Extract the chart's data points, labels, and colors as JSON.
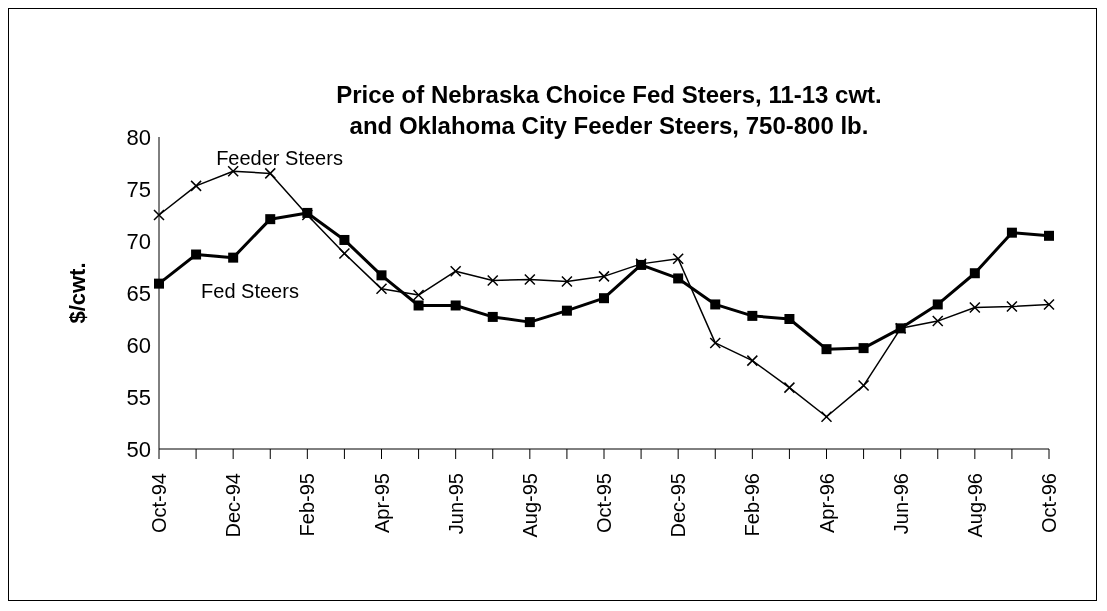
{
  "chart_data": {
    "type": "line",
    "title": "Price of Nebraska Choice Fed Steers, 11-13 cwt.\nand Oklahoma City Feeder Steers, 750-800 lb.",
    "ylabel": "$/cwt.",
    "categories": [
      "Oct-94",
      null,
      "Dec-94",
      null,
      "Feb-95",
      null,
      "Apr-95",
      null,
      "Jun-95",
      null,
      "Aug-95",
      null,
      "Oct-95",
      null,
      "Dec-95",
      null,
      "Feb-96",
      null,
      "Apr-96",
      null,
      "Jun-96",
      null,
      "Aug-96",
      null,
      "Oct-96"
    ],
    "series": [
      {
        "name": "Feeder Steers",
        "color": "#000000",
        "marker": "cross",
        "values": [
          72.5,
          75.3,
          76.7,
          76.5,
          72.5,
          68.8,
          65.4,
          64.8,
          67.1,
          66.2,
          66.3,
          66.1,
          66.6,
          67.8,
          68.3,
          60.2,
          58.5,
          55.9,
          53.1,
          56.1,
          61.6,
          62.3,
          63.6,
          63.7,
          63.9
        ]
      },
      {
        "name": "Fed Steers",
        "color": "#000000",
        "marker": "square",
        "values": [
          65.9,
          68.7,
          68.4,
          72.1,
          72.7,
          70.1,
          66.7,
          63.8,
          63.8,
          62.7,
          62.2,
          63.3,
          64.5,
          67.7,
          66.4,
          63.9,
          62.8,
          62.5,
          59.6,
          59.7,
          61.6,
          63.9,
          66.9,
          70.8,
          70.5
        ]
      }
    ],
    "ylim": [
      50,
      80
    ],
    "yticks": [
      50,
      55,
      60,
      65,
      70,
      75,
      80
    ],
    "legend": false
  }
}
